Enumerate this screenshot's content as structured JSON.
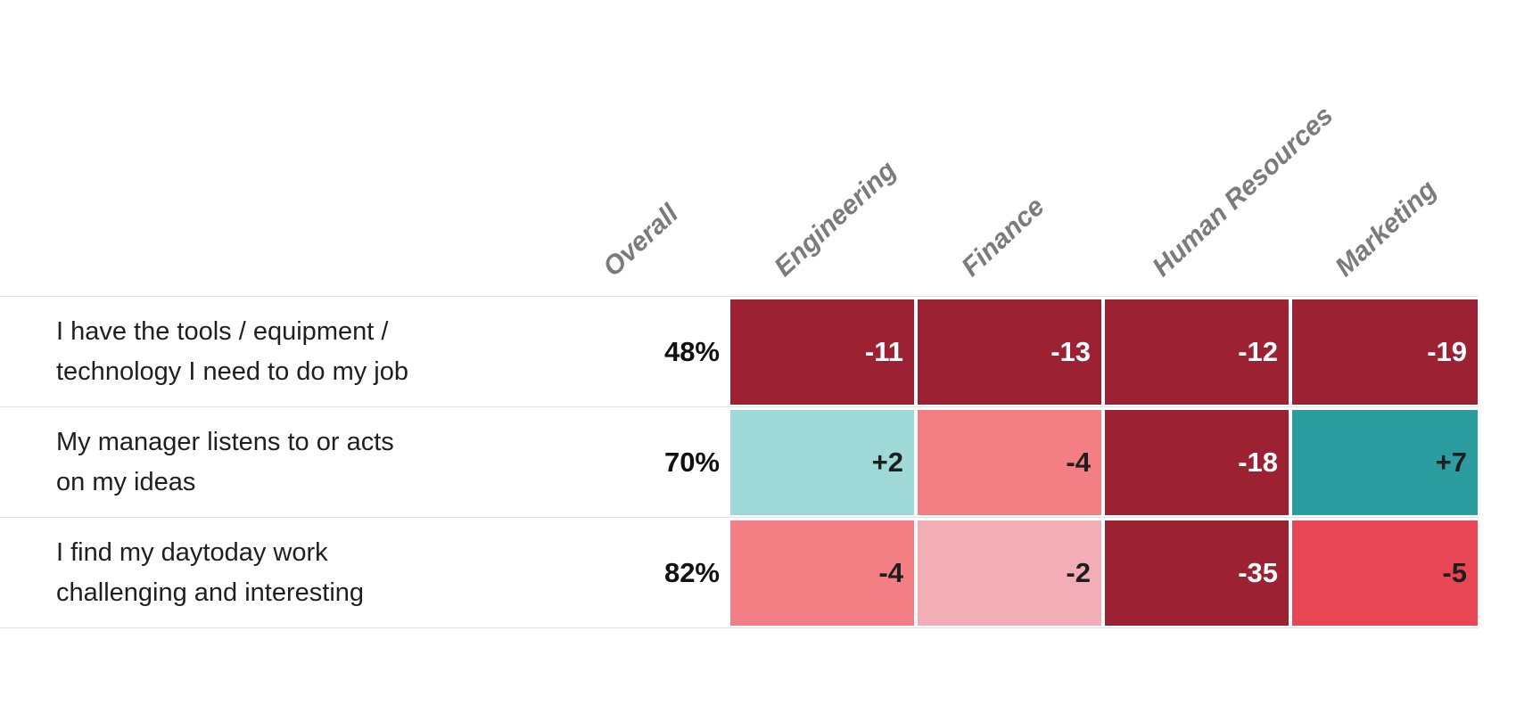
{
  "page": {
    "background": "#ffffff"
  },
  "header": {
    "text_color": "#7b7b7b",
    "columns": [
      {
        "label": "Overall"
      },
      {
        "label": "Engineering"
      },
      {
        "label": "Finance"
      },
      {
        "label": "Human Resources"
      },
      {
        "label": "Marketing"
      }
    ]
  },
  "colors": {
    "strong_negative": "#9c2132",
    "negative": "#e94655",
    "mild_negative": "#f37e84",
    "slight_negative": "#f3adb7",
    "slight_positive": "#9ed9d8",
    "positive": "#2b9da0",
    "grid_line": "#e3e3e3",
    "header_text": "#7b7b7b",
    "dark_text": "#1e1e1e",
    "light_text": "#ffffff"
  },
  "chart_data": {
    "type": "heatmap",
    "title": "",
    "columns": [
      "Overall",
      "Engineering",
      "Finance",
      "Human Resources",
      "Marketing"
    ],
    "rows": [
      {
        "question": "I have the tools / equipment / technology I need to do my job",
        "overall_pct": 48,
        "deltas": {
          "Engineering": -11,
          "Finance": -13,
          "Human Resources": -12,
          "Marketing": -19
        }
      },
      {
        "question": "My manager listens to or acts on my ideas",
        "overall_pct": 70,
        "deltas": {
          "Engineering": 2,
          "Finance": -4,
          "Human Resources": -18,
          "Marketing": 7
        }
      },
      {
        "question": "I find my daytoday work challenging and interesting",
        "overall_pct": 82,
        "deltas": {
          "Engineering": -4,
          "Finance": -2,
          "Human Resources": -35,
          "Marketing": -5
        }
      }
    ],
    "legend_position": "none",
    "grid": false,
    "value_format": "signed integer, negative red shades, positive teal shades"
  },
  "table": {
    "rows": [
      {
        "label_lines": [
          "I have the tools / equipment /",
          "technology I need to do my job"
        ],
        "overall": "48%",
        "cells": [
          {
            "value": "-11",
            "bg": "#9c2132",
            "fg": "#ffffff"
          },
          {
            "value": "-13",
            "bg": "#9c2132",
            "fg": "#ffffff"
          },
          {
            "value": "-12",
            "bg": "#9c2132",
            "fg": "#ffffff"
          },
          {
            "value": "-19",
            "bg": "#9c2132",
            "fg": "#ffffff"
          }
        ]
      },
      {
        "label_lines": [
          "My manager listens to or acts",
          "on my ideas"
        ],
        "overall": "70%",
        "cells": [
          {
            "value": "+2",
            "bg": "#9ed9d8",
            "fg": "#1e1e1e"
          },
          {
            "value": "-4",
            "bg": "#f37e84",
            "fg": "#1e1e1e"
          },
          {
            "value": "-18",
            "bg": "#9c2132",
            "fg": "#ffffff"
          },
          {
            "value": "+7",
            "bg": "#2b9da0",
            "fg": "#1e1e1e"
          }
        ]
      },
      {
        "label_lines": [
          "I find my daytoday work",
          "challenging and interesting"
        ],
        "overall": "82%",
        "cells": [
          {
            "value": "-4",
            "bg": "#f37e84",
            "fg": "#1e1e1e"
          },
          {
            "value": "-2",
            "bg": "#f3adb7",
            "fg": "#1e1e1e"
          },
          {
            "value": "-35",
            "bg": "#9c2132",
            "fg": "#ffffff"
          },
          {
            "value": "-5",
            "bg": "#e94655",
            "fg": "#1e1e1e"
          }
        ]
      }
    ]
  }
}
